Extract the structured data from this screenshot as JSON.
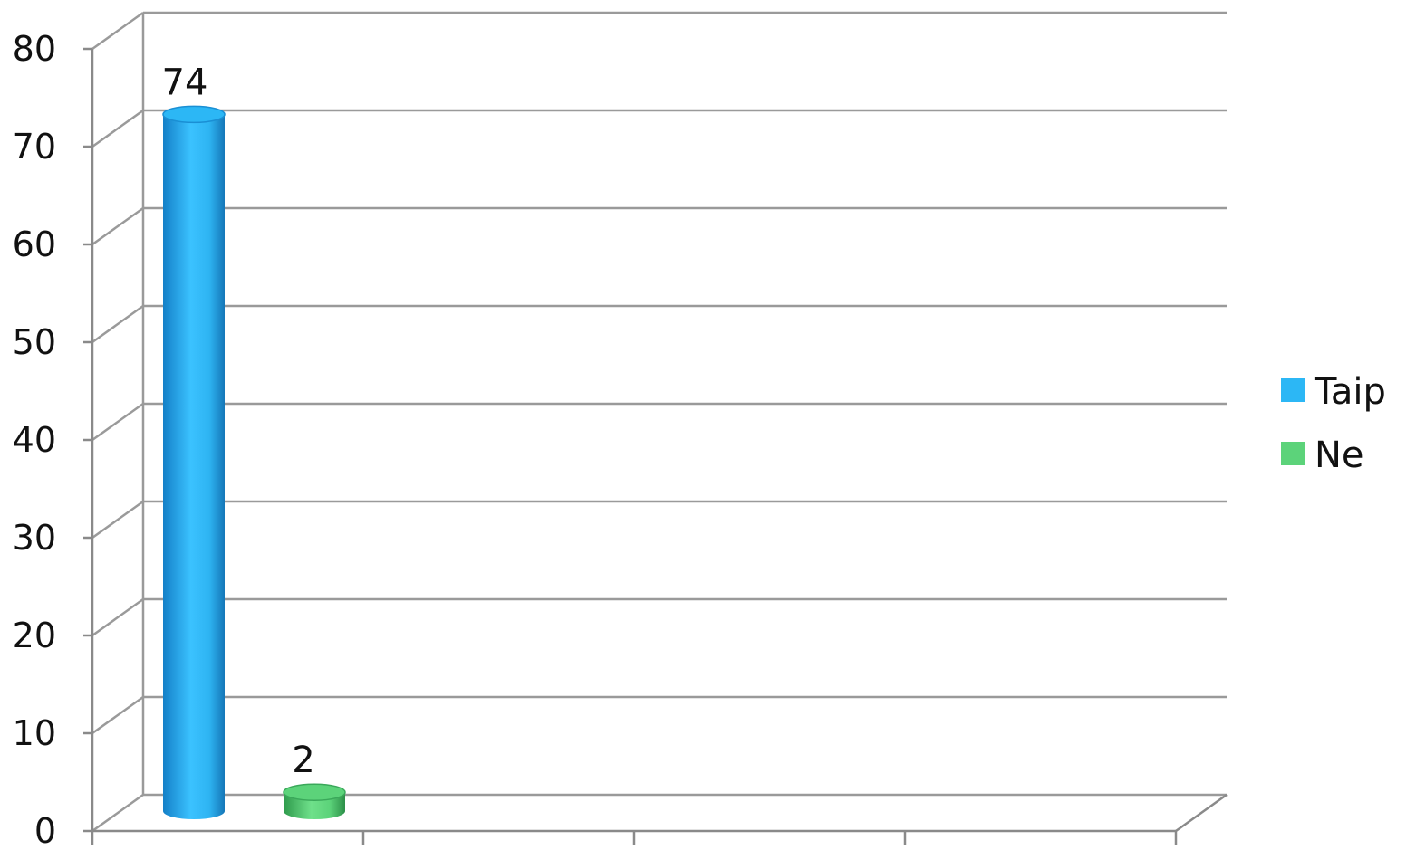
{
  "chart_data": {
    "type": "bar",
    "title": "",
    "xlabel": "",
    "ylabel": "",
    "ylim": [
      0,
      80
    ],
    "yticks": [
      "0",
      "10",
      "20",
      "30",
      "40",
      "50",
      "60",
      "70",
      "80"
    ],
    "grid": true,
    "legend_position": "right",
    "series": [
      {
        "name": "Taip",
        "value": 74,
        "label": "74",
        "color": "#2cb7f5"
      },
      {
        "name": "Ne",
        "value": 2,
        "label": "2",
        "color": "#5cd37a"
      }
    ]
  }
}
